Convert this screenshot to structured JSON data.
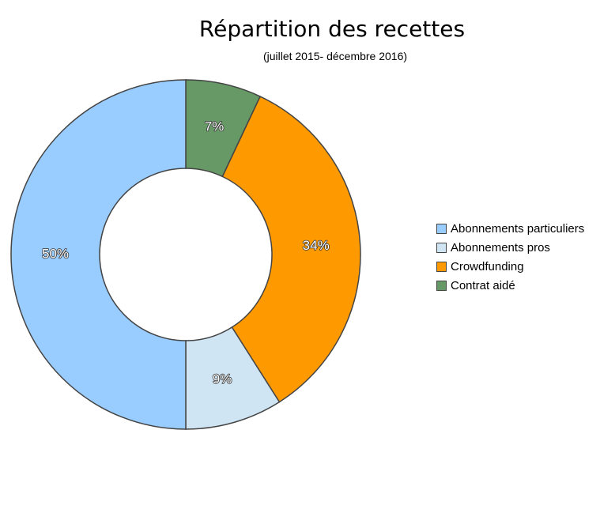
{
  "chart_data": {
    "type": "pie",
    "style": "donut",
    "title": "Répartition des recettes",
    "subtitle": "(juillet 2015- décembre 2016)",
    "legend_position": "right",
    "series": [
      {
        "name": "Abonnements particuliers",
        "value": 50,
        "label": "50%",
        "color": "#99ccff"
      },
      {
        "name": "Abonnements pros",
        "value": 9,
        "label": "9%",
        "color": "#cfe5f4"
      },
      {
        "name": "Crowdfunding",
        "value": 34,
        "label": "34%",
        "color": "#ff9900"
      },
      {
        "name": "Contrat aidé",
        "value": 7,
        "label": "7%",
        "color": "#669966"
      }
    ],
    "draw_order": [
      "Contrat aidé",
      "Crowdfunding",
      "Abonnements pros",
      "Abonnements particuliers"
    ]
  }
}
